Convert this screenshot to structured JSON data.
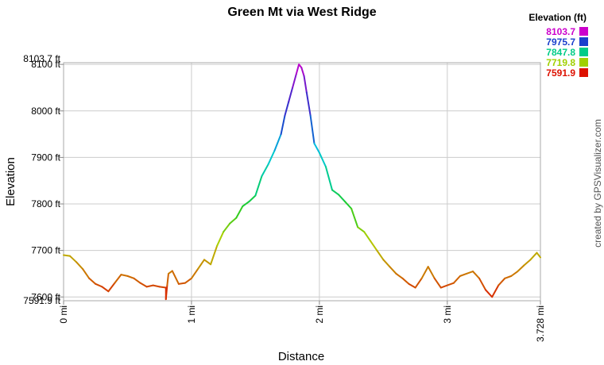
{
  "chart_data": {
    "type": "line",
    "title": "Green Mt via West Ridge",
    "xlabel": "Distance",
    "ylabel": "Elevation",
    "xlim": [
      0,
      3.728
    ],
    "ylim": [
      7591.9,
      8103.7
    ],
    "x_ticks": [
      {
        "value": 0,
        "label": "0 mi"
      },
      {
        "value": 1,
        "label": "1 mi"
      },
      {
        "value": 2,
        "label": "2 mi"
      },
      {
        "value": 3,
        "label": "3 mi"
      },
      {
        "value": 3.728,
        "label": "3.728 mi"
      }
    ],
    "y_ticks": [
      {
        "value": 7600,
        "label": "7600 ft"
      },
      {
        "value": 7700,
        "label": "7700 ft"
      },
      {
        "value": 7800,
        "label": "7800 ft"
      },
      {
        "value": 7900,
        "label": "7900 ft"
      },
      {
        "value": 8000,
        "label": "8000 ft"
      },
      {
        "value": 8100,
        "label": "8100 ft"
      }
    ],
    "y_extremes": [
      {
        "value": 7591.9,
        "label": "7591.9 ft"
      },
      {
        "value": 8103.7,
        "label": "8103.7 ft"
      }
    ],
    "grid": true,
    "legend": {
      "title": "Elevation (ft)",
      "placement": "top-right",
      "entries": [
        {
          "label": "8103.7",
          "value": 8103.7,
          "color": "#cc00cc"
        },
        {
          "label": "7975.7",
          "value": 7975.7,
          "color": "#1a3fcc"
        },
        {
          "label": "7847.8",
          "value": 7847.8,
          "color": "#00cc88"
        },
        {
          "label": "7719.8",
          "value": 7719.8,
          "color": "#a0d000"
        },
        {
          "label": "7591.9",
          "value": 7591.9,
          "color": "#dd1100"
        }
      ]
    },
    "colorscale": [
      {
        "value": 7591.9,
        "color": "#dd1100"
      },
      {
        "value": 7650,
        "color": "#cc7700"
      },
      {
        "value": 7719.8,
        "color": "#b4d000"
      },
      {
        "value": 7790,
        "color": "#22cc22"
      },
      {
        "value": 7847.8,
        "color": "#00cc88"
      },
      {
        "value": 7915,
        "color": "#00c8e0"
      },
      {
        "value": 7975.7,
        "color": "#1a3fcc"
      },
      {
        "value": 8040,
        "color": "#5522cc"
      },
      {
        "value": 8103.7,
        "color": "#cc00cc"
      }
    ],
    "series": [
      {
        "x": [
          0.0,
          0.05,
          0.1,
          0.15,
          0.2,
          0.25,
          0.3,
          0.35,
          0.4,
          0.45,
          0.5,
          0.55,
          0.6,
          0.65,
          0.7,
          0.75,
          0.8,
          0.8,
          0.81,
          0.82,
          0.85,
          0.9,
          0.95,
          1.0,
          1.05,
          1.1,
          1.15,
          1.2,
          1.25,
          1.3,
          1.35,
          1.4,
          1.45,
          1.5,
          1.55,
          1.6,
          1.65,
          1.7,
          1.73,
          1.76,
          1.79,
          1.82,
          1.84,
          1.86,
          1.88,
          1.9,
          1.93,
          1.96,
          2.0,
          2.05,
          2.1,
          2.15,
          2.2,
          2.25,
          2.3,
          2.35,
          2.4,
          2.45,
          2.5,
          2.55,
          2.6,
          2.65,
          2.7,
          2.75,
          2.8,
          2.85,
          2.9,
          2.95,
          3.0,
          3.05,
          3.1,
          3.15,
          3.2,
          3.25,
          3.3,
          3.35,
          3.4,
          3.45,
          3.5,
          3.55,
          3.6,
          3.65,
          3.7,
          3.728
        ],
        "y": [
          7690,
          7688,
          7675,
          7660,
          7640,
          7628,
          7622,
          7612,
          7630,
          7648,
          7645,
          7640,
          7630,
          7622,
          7625,
          7622,
          7620,
          7595,
          7625,
          7650,
          7656,
          7628,
          7630,
          7640,
          7660,
          7680,
          7670,
          7710,
          7740,
          7758,
          7770,
          7795,
          7805,
          7818,
          7860,
          7885,
          7915,
          7950,
          7990,
          8020,
          8050,
          8080,
          8100,
          8093,
          8075,
          8040,
          7990,
          7930,
          7910,
          7880,
          7830,
          7820,
          7805,
          7790,
          7750,
          7740,
          7720,
          7700,
          7680,
          7665,
          7650,
          7640,
          7628,
          7620,
          7640,
          7665,
          7640,
          7620,
          7625,
          7630,
          7645,
          7650,
          7655,
          7640,
          7615,
          7600,
          7625,
          7640,
          7645,
          7655,
          7668,
          7680,
          7695,
          7685
        ]
      }
    ]
  },
  "credit": "created by GPSVisualizer.com"
}
